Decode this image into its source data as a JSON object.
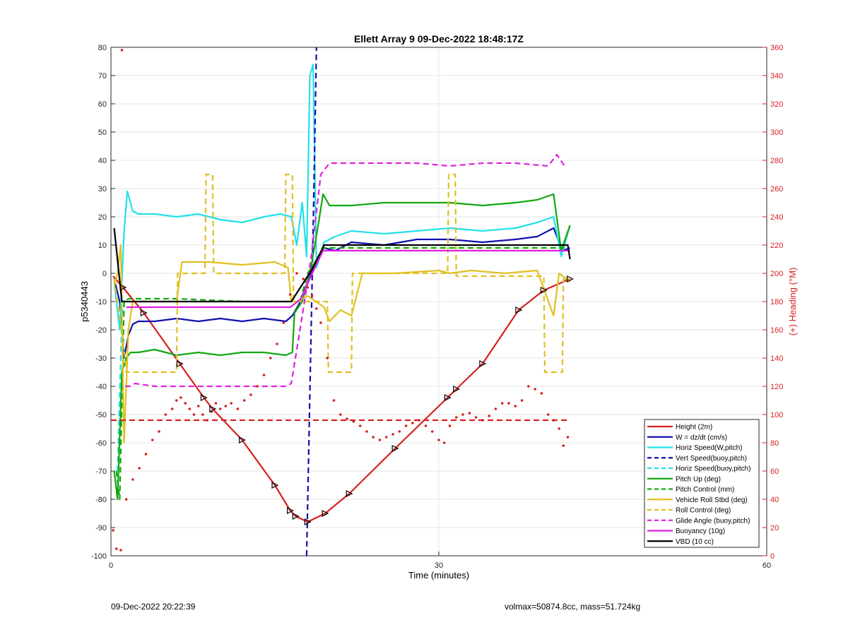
{
  "chart_data": {
    "type": "line",
    "title": "Ellett Array 9 09-Dec-2022 18:48:17Z",
    "xlabel": "Time (minutes)",
    "ylabel": "p5340443",
    "y2label": "(+) Heading (°M)",
    "xlim": [
      0,
      60
    ],
    "ylim": [
      -100,
      80
    ],
    "y2lim": [
      0,
      360
    ],
    "xticks": [
      0,
      30,
      60
    ],
    "yticks": [
      -100,
      -90,
      -80,
      -70,
      -60,
      -50,
      -40,
      -30,
      -20,
      -10,
      0,
      10,
      20,
      30,
      40,
      50,
      60,
      70,
      80
    ],
    "y2ticks": [
      0,
      20,
      40,
      60,
      80,
      100,
      120,
      140,
      160,
      180,
      200,
      220,
      240,
      260,
      280,
      300,
      320,
      340,
      360
    ],
    "grid": true,
    "legend_position": "bottom-right",
    "colors": {
      "height": "#d62020",
      "w": "#1010b0",
      "horiz_speed": "#22e0e8",
      "pitch": "#10a810",
      "roll": "#e0c020",
      "glide": "#e020e0",
      "buoyancy": "#e020e0",
      "vbd": "#000000",
      "heading_axis": "#d62020"
    },
    "legend": [
      "Height (2m)",
      "W = dz/dt (cm/s)",
      "Horiz Speed(W,pitch)",
      "Vert Speed(buoy,pitch)",
      "Horiz Speed(buoy,pitch)",
      "Pitch Up (deg)",
      "Pitch Control (mm)",
      "Vehicle Roll Stbd (deg)",
      "Roll Control (deg)",
      "Glide Angle (buoy,pitch)",
      "Buoyancy (10g)",
      "VBD (10 cc)"
    ],
    "series": [
      {
        "name": "Height (2m)",
        "style": "solid",
        "color": "#d62020",
        "x": [
          0.2,
          1.1,
          3,
          6.3,
          8.5,
          9.3,
          12,
          15,
          16.4,
          16.9,
          18,
          19.6,
          21.8,
          26,
          30.8,
          31.6,
          34,
          37.3,
          39.6,
          42
        ],
        "y": [
          -1,
          -5,
          -14,
          -32,
          -44,
          -48,
          -59,
          -75,
          -84,
          -86,
          -88,
          -85,
          -78,
          -62,
          -44,
          -41,
          -32,
          -13,
          -6,
          -2
        ]
      },
      {
        "name": "W = dz/dt (cm/s)",
        "style": "solid",
        "color": "#1010b0",
        "x": [
          0.3,
          0.8,
          1.2,
          1.6,
          2,
          2.5,
          4,
          6,
          8,
          10,
          12,
          14,
          16,
          16.6,
          17.2,
          18,
          18.8,
          19.5,
          20.5,
          22,
          25,
          28,
          31,
          34,
          37,
          39,
          40.5,
          41.3,
          42
        ],
        "y": [
          -2,
          -10,
          -30,
          -22,
          -18,
          -17,
          -17,
          -16,
          -17,
          -16,
          -17,
          -16,
          -17,
          -15,
          -11,
          -3,
          5,
          9,
          8,
          11,
          10,
          12,
          12,
          11,
          12,
          13,
          16,
          8,
          9
        ]
      },
      {
        "name": "Horiz Speed(W,pitch)",
        "style": "solid",
        "color": "#22e0e8",
        "x": [
          0.3,
          0.8,
          1.2,
          1.5,
          2,
          2.5,
          4,
          6,
          8,
          10,
          12,
          14,
          15.5,
          16.5,
          17,
          17.5,
          17.9,
          18.2,
          18.5,
          18.8,
          19.5,
          20.5,
          22,
          25,
          28,
          31,
          34,
          37,
          39,
          40.5,
          41.2,
          42
        ],
        "y": [
          -3,
          -20,
          15,
          29,
          22,
          21,
          21,
          20,
          21,
          19,
          18,
          20,
          21,
          20,
          10,
          25,
          6,
          70,
          74,
          2,
          11,
          13,
          15,
          14,
          15,
          16,
          15,
          16,
          18,
          20,
          6,
          17
        ]
      },
      {
        "name": "Vert Speed(buoy,pitch)",
        "style": "dashed",
        "color": "#1010b0",
        "x": [
          17.9,
          18.5,
          18.8
        ],
        "y": [
          -100,
          15,
          80
        ]
      },
      {
        "name": "Horiz Speed(buoy,pitch)",
        "style": "dashed",
        "color": "#22e0e8",
        "x": [
          0.6,
          1,
          1.3
        ],
        "y": [
          -70,
          -15,
          -9
        ]
      },
      {
        "name": "Pitch Up (deg)",
        "style": "solid",
        "color": "#10a810",
        "x": [
          0.3,
          0.6,
          1,
          1.4,
          1.8,
          2.5,
          4,
          6,
          8,
          10,
          12,
          14,
          16,
          16.6,
          16.8,
          17.5,
          18.3,
          19,
          19.4,
          20,
          22,
          25,
          28,
          31,
          34,
          37,
          39,
          40.5,
          41.2,
          42
        ],
        "y": [
          -70,
          -80,
          -35,
          -30,
          -28,
          -28,
          -27,
          -29,
          -28,
          -29,
          -28,
          -28,
          -29,
          -28,
          -14,
          -10,
          2,
          18,
          28,
          24,
          24,
          25,
          25,
          25,
          24,
          25,
          26,
          28,
          8,
          17
        ]
      },
      {
        "name": "Pitch Control (mm)",
        "style": "dashed",
        "color": "#10a810",
        "x": [
          0.5,
          0.8,
          1.2,
          1.6,
          6,
          12,
          16.5,
          17.3,
          18,
          19.5,
          30,
          41.5
        ],
        "y": [
          -70,
          -80,
          -10,
          -9,
          -9,
          -10,
          -10,
          -10,
          0,
          9,
          9,
          9
        ]
      },
      {
        "name": "Vehicle Roll Stbd (deg)",
        "style": "solid",
        "color": "#e0c020",
        "x": [
          0.3,
          0.6,
          0.9,
          1.2,
          1.6,
          2,
          4,
          6,
          6.5,
          9,
          12,
          15,
          16.2,
          16.5,
          17,
          18,
          19.5,
          20,
          21,
          22,
          23,
          26,
          30,
          31,
          33,
          36,
          39,
          40.5,
          41,
          42
        ],
        "y": [
          -5,
          0,
          10,
          -60,
          -20,
          -10,
          -10,
          -10,
          4,
          4,
          3,
          4,
          2,
          -10,
          -10,
          -8,
          -12,
          -17,
          -13,
          -15,
          0,
          0,
          1,
          0,
          1,
          0,
          1,
          -15,
          0,
          -3
        ]
      },
      {
        "name": "Roll Control (deg)",
        "style": "dashed",
        "color": "#e0c020",
        "x": [
          0.3,
          1.3,
          1.4,
          6,
          6.1,
          8.6,
          8.7,
          9.3,
          9.4,
          15.9,
          16,
          16.6,
          16.7,
          19.8,
          19.9,
          22,
          22.1,
          30.8,
          30.9,
          31.5,
          31.6,
          39.6,
          39.7,
          41.3,
          41.4,
          42
        ],
        "y": [
          -2,
          -30,
          -35,
          -35,
          0,
          0,
          35,
          35,
          0,
          0,
          35,
          35,
          -10,
          -10,
          -35,
          -35,
          0,
          0,
          35,
          35,
          -1,
          -1,
          -35,
          -35,
          -2,
          -2
        ]
      },
      {
        "name": "Glide Angle (buoy,pitch)",
        "style": "dashed",
        "color": "#e020e0",
        "x": [
          1.3,
          1.7,
          2.2,
          4,
          6,
          8,
          10,
          12,
          14,
          16,
          16.5,
          17.5,
          18.3,
          19.2,
          20,
          22,
          25,
          28,
          31,
          34,
          37,
          40,
          40.8,
          41.5
        ],
        "y": [
          -40,
          -40,
          -39,
          -40,
          -40,
          -40,
          -40,
          -40,
          -40,
          -40,
          -39,
          -15,
          5,
          35,
          39,
          39,
          39,
          39,
          38,
          39,
          39,
          38,
          42,
          38
        ]
      },
      {
        "name": "Buoyancy (10g)",
        "style": "solid",
        "color": "#e020e0",
        "x": [
          1.4,
          6,
          12,
          16.4,
          17.4,
          18.3,
          19.4,
          25,
          30,
          42
        ],
        "y": [
          -12,
          -12,
          -12,
          -12,
          -9,
          -1,
          8,
          8,
          8,
          8
        ]
      },
      {
        "name": "VBD (10 cc)",
        "style": "solid",
        "color": "#000000",
        "x": [
          0.3,
          1,
          6,
          12,
          16.5,
          17.5,
          18.5,
          19.5,
          25,
          30,
          41.8,
          42
        ],
        "y": [
          16,
          -10,
          -10,
          -10,
          -10,
          -4,
          2,
          10,
          10,
          10,
          10,
          5
        ]
      },
      {
        "name": "heading",
        "style": "dots",
        "axis": "right",
        "color": "#d62020",
        "x": [
          0.2,
          0.5,
          0.9,
          1.4,
          2,
          2.6,
          3.2,
          3.8,
          4.4,
          5,
          5.6,
          6,
          6.4,
          6.8,
          7.2,
          7.6,
          8,
          8.4,
          8.8,
          9.2,
          9.6,
          10,
          10.5,
          11,
          11.6,
          12.2,
          12.8,
          13.4,
          14,
          14.6,
          15.2,
          15.8,
          16.4,
          17,
          17.6,
          18,
          18.4,
          18.8,
          19.2,
          19.8,
          20.4,
          21,
          21.6,
          22.2,
          22.8,
          23.4,
          24,
          24.6,
          25.2,
          25.8,
          26.4,
          27,
          27.6,
          28.2,
          28.8,
          29.4,
          30,
          30.5,
          31,
          31.6,
          32.2,
          32.8,
          33.4,
          34,
          34.6,
          35.2,
          35.8,
          36.4,
          37,
          37.6,
          38.2,
          38.8,
          39.4,
          40,
          40.5,
          41,
          41.4,
          41.8
        ],
        "y": [
          18,
          5,
          4,
          40,
          54,
          62,
          72,
          82,
          88,
          100,
          104,
          110,
          112,
          108,
          104,
          100,
          106,
          100,
          96,
          102,
          108,
          104,
          106,
          108,
          104,
          110,
          114,
          120,
          128,
          140,
          150,
          165,
          185,
          200,
          196,
          190,
          184,
          175,
          165,
          140,
          110,
          100,
          97,
          95,
          92,
          88,
          84,
          82,
          84,
          86,
          88,
          92,
          94,
          96,
          92,
          88,
          82,
          80,
          92,
          98,
          100,
          101,
          98,
          96,
          99,
          104,
          108,
          108,
          106,
          110,
          120,
          118,
          115,
          100,
          96,
          90,
          78,
          84
        ]
      },
      {
        "name": "heading_mean",
        "style": "dashed",
        "axis": "right",
        "color": "#d62020",
        "x": [
          0,
          42
        ],
        "y": [
          96,
          96
        ]
      },
      {
        "name": "heading_outlier",
        "style": "dots",
        "axis": "right",
        "color": "#d62020",
        "x": [
          1
        ],
        "y": [
          358
        ]
      }
    ]
  },
  "footer": {
    "timestamp": "09-Dec-2022 20:22:39",
    "params": "volmax=50874.8cc, mass=51.724kg"
  }
}
